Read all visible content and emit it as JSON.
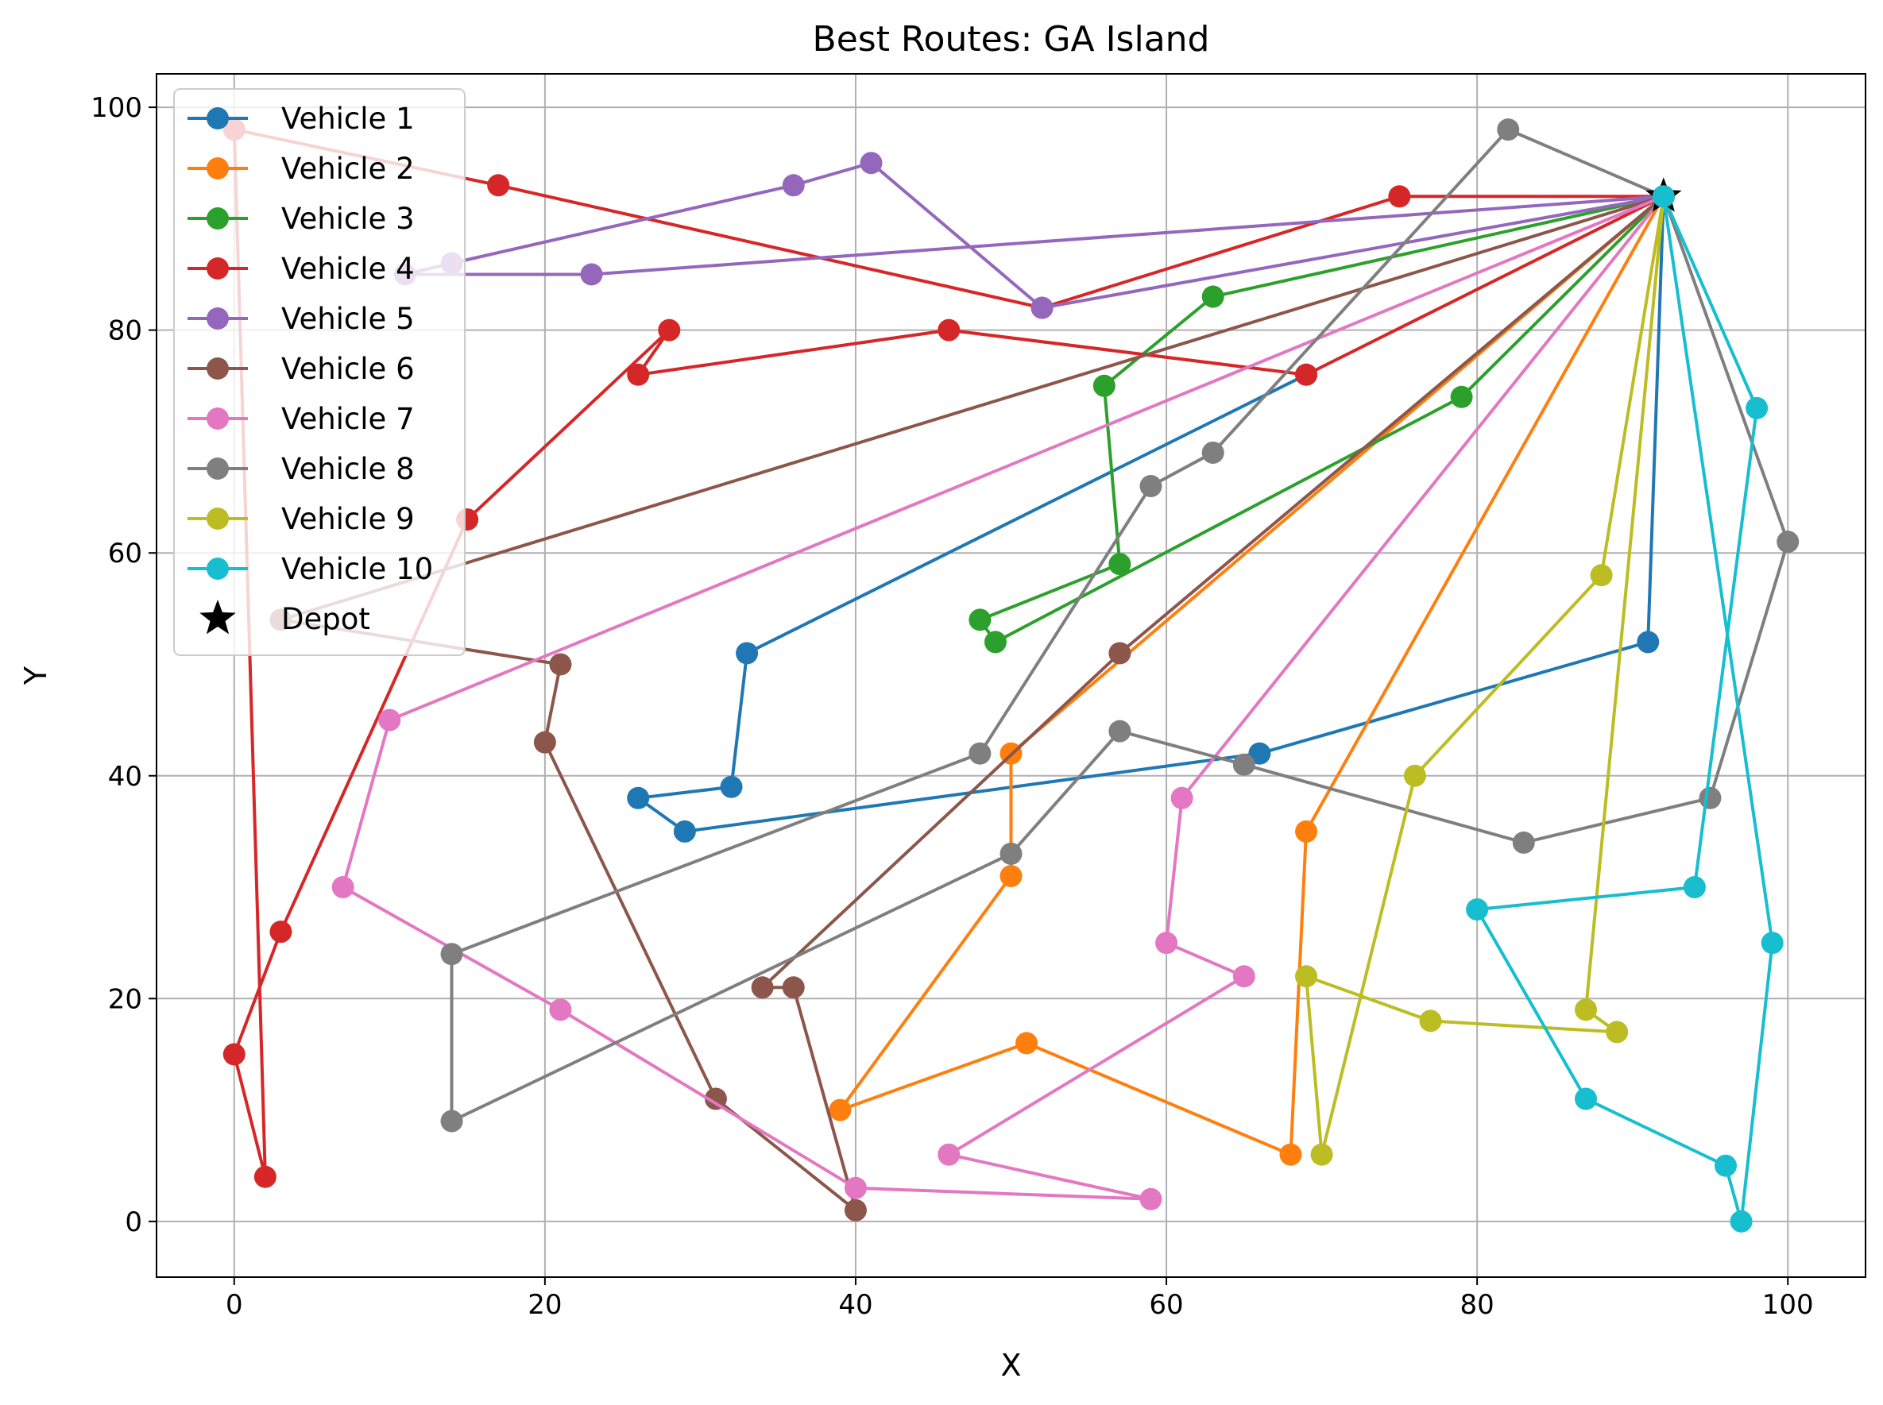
{
  "chart_data": {
    "type": "line",
    "title": "Best Routes: GA Island",
    "xlabel": "X",
    "ylabel": "Y",
    "xlim": [
      -5,
      105
    ],
    "ylim": [
      -5,
      103
    ],
    "xticks": [
      0,
      20,
      40,
      60,
      80,
      100
    ],
    "yticks": [
      0,
      20,
      40,
      60,
      80,
      100
    ],
    "grid": true,
    "legend_position": "top-left",
    "depot": {
      "name": "Depot",
      "x": 92,
      "y": 92,
      "color": "#000000",
      "marker": "star"
    },
    "series": [
      {
        "name": "Vehicle 1",
        "color": "#1f77b4",
        "points": [
          [
            92,
            92
          ],
          [
            91,
            52
          ],
          [
            66,
            42
          ],
          [
            29,
            35
          ],
          [
            26,
            38
          ],
          [
            32,
            39
          ],
          [
            33,
            51
          ],
          [
            69,
            76
          ]
        ]
      },
      {
        "name": "Vehicle 2",
        "color": "#ff7f0e",
        "points": [
          [
            92,
            92
          ],
          [
            69,
            35
          ],
          [
            68,
            6
          ],
          [
            51,
            16
          ],
          [
            39,
            10
          ],
          [
            50,
            31
          ],
          [
            50,
            42
          ],
          [
            92,
            92
          ]
        ]
      },
      {
        "name": "Vehicle 3",
        "color": "#2ca02c",
        "points": [
          [
            92,
            92
          ],
          [
            63,
            83
          ],
          [
            56,
            75
          ],
          [
            57,
            59
          ],
          [
            48,
            54
          ],
          [
            49,
            52
          ],
          [
            79,
            74
          ],
          [
            92,
            92
          ]
        ]
      },
      {
        "name": "Vehicle 4",
        "color": "#d62728",
        "points": [
          [
            92,
            92
          ],
          [
            75,
            92
          ],
          [
            52,
            82
          ],
          [
            17,
            93
          ],
          [
            0,
            98
          ],
          [
            2,
            4
          ],
          [
            0,
            15
          ],
          [
            3,
            26
          ],
          [
            15,
            63
          ],
          [
            28,
            80
          ],
          [
            26,
            76
          ],
          [
            46,
            80
          ],
          [
            69,
            76
          ],
          [
            92,
            92
          ]
        ]
      },
      {
        "name": "Vehicle 5",
        "color": "#9467bd",
        "points": [
          [
            92,
            92
          ],
          [
            52,
            82
          ],
          [
            41,
            95
          ],
          [
            36,
            93
          ],
          [
            14,
            86
          ],
          [
            11,
            85
          ],
          [
            23,
            85
          ],
          [
            92,
            92
          ]
        ]
      },
      {
        "name": "Vehicle 6",
        "color": "#8c564b",
        "points": [
          [
            92,
            92
          ],
          [
            3,
            54
          ],
          [
            21,
            50
          ],
          [
            20,
            43
          ],
          [
            31,
            11
          ],
          [
            40,
            1
          ],
          [
            36,
            21
          ],
          [
            34,
            21
          ],
          [
            57,
            51
          ],
          [
            92,
            92
          ]
        ]
      },
      {
        "name": "Vehicle 7",
        "color": "#e377c2",
        "points": [
          [
            92,
            92
          ],
          [
            10,
            45
          ],
          [
            7,
            30
          ],
          [
            21,
            19
          ],
          [
            40,
            3
          ],
          [
            59,
            2
          ],
          [
            46,
            6
          ],
          [
            65,
            22
          ],
          [
            60,
            25
          ],
          [
            61,
            38
          ],
          [
            92,
            92
          ]
        ]
      },
      {
        "name": "Vehicle 8",
        "color": "#7f7f7f",
        "points": [
          [
            92,
            92
          ],
          [
            82,
            98
          ],
          [
            63,
            69
          ],
          [
            59,
            66
          ],
          [
            48,
            42
          ],
          [
            14,
            24
          ],
          [
            14,
            9
          ],
          [
            50,
            33
          ],
          [
            57,
            44
          ],
          [
            65,
            41
          ],
          [
            83,
            34
          ],
          [
            95,
            38
          ],
          [
            100,
            61
          ],
          [
            92,
            92
          ]
        ]
      },
      {
        "name": "Vehicle 9",
        "color": "#bcbd22",
        "points": [
          [
            92,
            92
          ],
          [
            88,
            58
          ],
          [
            76,
            40
          ],
          [
            70,
            6
          ],
          [
            69,
            22
          ],
          [
            77,
            18
          ],
          [
            89,
            17
          ],
          [
            87,
            19
          ],
          [
            92,
            92
          ]
        ]
      },
      {
        "name": "Vehicle 10",
        "color": "#17becf",
        "points": [
          [
            92,
            92
          ],
          [
            98,
            73
          ],
          [
            94,
            30
          ],
          [
            80,
            28
          ],
          [
            87,
            11
          ],
          [
            96,
            5
          ],
          [
            97,
            0
          ],
          [
            99,
            25
          ],
          [
            92,
            92
          ]
        ]
      }
    ]
  }
}
